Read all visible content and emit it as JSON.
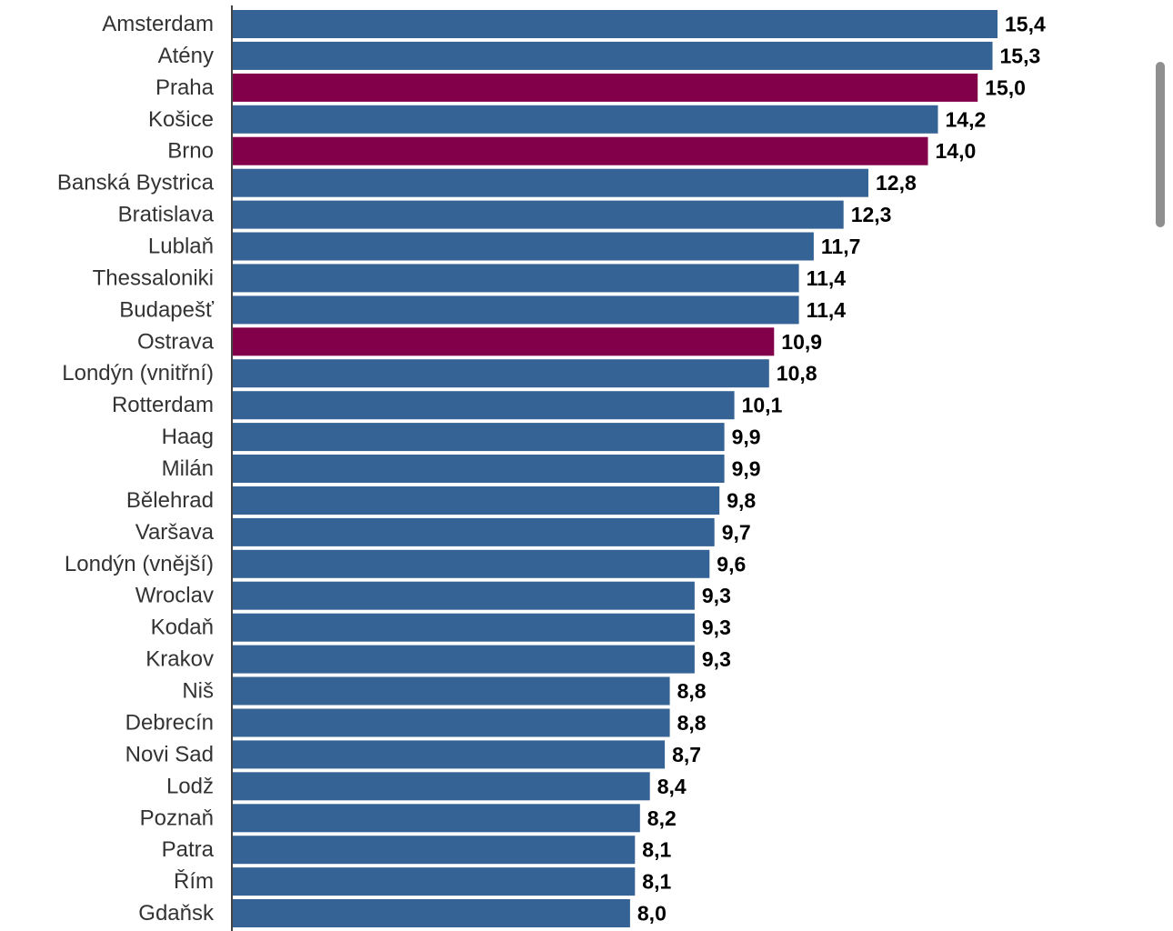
{
  "chart_data": {
    "type": "bar",
    "orientation": "horizontal",
    "categories": [
      "Amsterdam",
      "Atény",
      "Praha",
      "Košice",
      "Brno",
      "Banská Bystrica",
      "Bratislava",
      "Lublaň",
      "Thessaloniki",
      "Budapešť",
      "Ostrava",
      "Londýn (vnitřní)",
      "Rotterdam",
      "Haag",
      "Milán",
      "Bělehrad",
      "Varšava",
      "Londýn (vnější)",
      "Wroclav",
      "Kodaň",
      "Krakov",
      "Niš",
      "Debrecín",
      "Novi Sad",
      "Lodž",
      "Poznaň",
      "Patra",
      "Řím",
      "Gdaňsk"
    ],
    "values": [
      15.4,
      15.3,
      15.0,
      14.2,
      14.0,
      12.8,
      12.3,
      11.7,
      11.4,
      11.4,
      10.9,
      10.8,
      10.1,
      9.9,
      9.9,
      9.8,
      9.7,
      9.6,
      9.3,
      9.3,
      9.3,
      8.8,
      8.8,
      8.7,
      8.4,
      8.2,
      8.1,
      8.1,
      8.0
    ],
    "value_labels": [
      "15,4",
      "15,3",
      "15,0",
      "14,2",
      "14,0",
      "12,8",
      "12,3",
      "11,7",
      "11,4",
      "11,4",
      "10,9",
      "10,8",
      "10,1",
      "9,9",
      "9,9",
      "9,8",
      "9,7",
      "9,6",
      "9,3",
      "9,3",
      "9,3",
      "8,8",
      "8,8",
      "8,7",
      "8,4",
      "8,2",
      "8,1",
      "8,1",
      "8,0"
    ],
    "highlighted": [
      "Praha",
      "Brno",
      "Ostrava"
    ],
    "colors": {
      "default": "#366395",
      "highlight": "#82004a"
    },
    "xlim": [
      0,
      15.4
    ],
    "title": "",
    "xlabel": "",
    "ylabel": "",
    "grid": false,
    "legend": "none"
  },
  "scrollbar": {
    "visible": true
  }
}
